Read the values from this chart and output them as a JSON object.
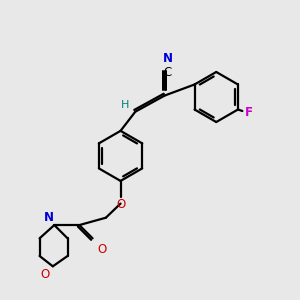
{
  "bg_color": "#e8e8e8",
  "figsize": [
    3.0,
    3.0
  ],
  "dpi": 100,
  "bond_lw": 1.6,
  "ring_r": 0.85,
  "colors": {
    "bond": "black",
    "N": "#0000dd",
    "O": "#cc0000",
    "F": "#cc00cc",
    "H": "#008080",
    "C": "black"
  }
}
